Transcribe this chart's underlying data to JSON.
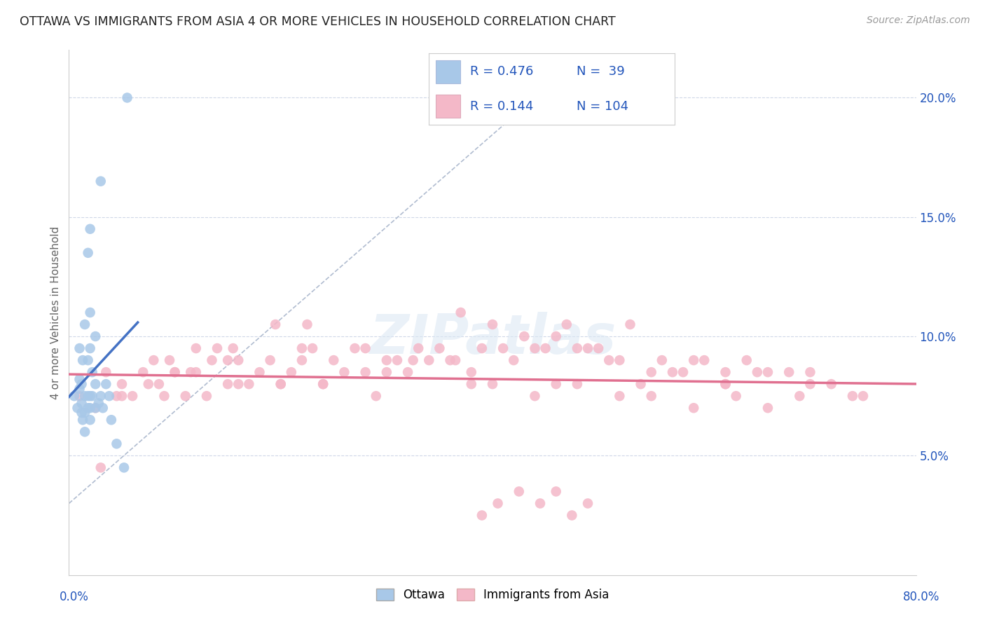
{
  "title": "OTTAWA VS IMMIGRANTS FROM ASIA 4 OR MORE VEHICLES IN HOUSEHOLD CORRELATION CHART",
  "source_text": "Source: ZipAtlas.com",
  "ylabel": "4 or more Vehicles in Household",
  "xlim": [
    0.0,
    80.0
  ],
  "ylim": [
    0.0,
    22.0
  ],
  "ytick_vals": [
    5.0,
    10.0,
    15.0,
    20.0
  ],
  "ytick_labels": [
    "5.0%",
    "10.0%",
    "15.0%",
    "20.0%"
  ],
  "watermark": "ZIPatlas",
  "color_ottawa": "#a8c8e8",
  "color_immigrants": "#f4b8c8",
  "color_trendline_ottawa": "#4472c4",
  "color_trendline_immigrants": "#e07090",
  "color_ref_line": "#b0bcd0",
  "color_grid": "#d0d8e8",
  "color_title": "#333333",
  "color_legend_val": "#2255bb",
  "color_yticklabel": "#2255bb",
  "ottawa_x": [
    0.5,
    0.8,
    1.0,
    1.0,
    1.0,
    1.2,
    1.2,
    1.2,
    1.3,
    1.3,
    1.5,
    1.5,
    1.5,
    1.5,
    1.8,
    1.8,
    1.8,
    1.8,
    2.0,
    2.0,
    2.0,
    2.0,
    2.0,
    2.0,
    2.2,
    2.2,
    2.5,
    2.5,
    2.5,
    2.8,
    3.0,
    3.0,
    3.2,
    3.5,
    3.8,
    4.0,
    4.5,
    5.2,
    5.5
  ],
  "ottawa_y": [
    7.5,
    7.0,
    7.8,
    8.2,
    9.5,
    6.8,
    7.2,
    8.0,
    6.5,
    9.0,
    6.0,
    6.8,
    7.5,
    10.5,
    7.0,
    7.5,
    9.0,
    13.5,
    6.5,
    7.0,
    7.5,
    9.5,
    11.0,
    14.5,
    7.5,
    8.5,
    7.0,
    8.0,
    10.0,
    7.2,
    7.5,
    16.5,
    7.0,
    8.0,
    7.5,
    6.5,
    5.5,
    4.5,
    20.0
  ],
  "immigrants_x": [
    1.0,
    2.5,
    3.0,
    4.5,
    5.0,
    6.0,
    7.0,
    8.0,
    8.5,
    9.0,
    9.5,
    10.0,
    11.0,
    11.5,
    12.0,
    13.0,
    13.5,
    14.0,
    15.0,
    15.5,
    16.0,
    17.0,
    18.0,
    19.0,
    19.5,
    20.0,
    21.0,
    22.0,
    22.5,
    23.0,
    24.0,
    25.0,
    26.0,
    27.0,
    28.0,
    29.0,
    30.0,
    31.0,
    32.0,
    33.0,
    34.0,
    35.0,
    36.0,
    37.0,
    38.0,
    39.0,
    40.0,
    41.0,
    42.0,
    43.0,
    44.0,
    45.0,
    46.0,
    47.0,
    48.0,
    49.0,
    50.0,
    51.0,
    52.0,
    53.0,
    55.0,
    56.0,
    57.0,
    58.0,
    59.0,
    60.0,
    62.0,
    63.0,
    64.0,
    65.0,
    66.0,
    68.0,
    70.0,
    72.0,
    74.0,
    75.0,
    3.5,
    7.5,
    12.0,
    16.0,
    20.0,
    24.0,
    28.0,
    32.5,
    36.5,
    40.0,
    44.0,
    48.0,
    52.0,
    55.0,
    59.0,
    62.0,
    66.0,
    69.0,
    5.0,
    10.0,
    15.0,
    22.0,
    30.0,
    38.0,
    46.0,
    54.0,
    62.0,
    70.0
  ],
  "immigrants_y": [
    7.5,
    7.0,
    4.5,
    7.5,
    8.0,
    7.5,
    8.5,
    9.0,
    8.0,
    7.5,
    9.0,
    8.5,
    7.5,
    8.5,
    9.5,
    7.5,
    9.0,
    9.5,
    8.0,
    9.5,
    9.0,
    8.0,
    8.5,
    9.0,
    10.5,
    8.0,
    8.5,
    9.5,
    10.5,
    9.5,
    8.0,
    9.0,
    8.5,
    9.5,
    8.5,
    7.5,
    9.0,
    9.0,
    8.5,
    9.5,
    9.0,
    9.5,
    9.0,
    11.0,
    8.5,
    9.5,
    10.5,
    9.5,
    9.0,
    10.0,
    9.5,
    9.5,
    10.0,
    10.5,
    9.5,
    9.5,
    9.5,
    9.0,
    9.0,
    10.5,
    8.5,
    9.0,
    8.5,
    8.5,
    9.0,
    9.0,
    8.5,
    7.5,
    9.0,
    8.5,
    8.5,
    8.5,
    8.5,
    8.0,
    7.5,
    7.5,
    8.5,
    8.0,
    8.5,
    8.0,
    8.0,
    8.0,
    9.5,
    9.0,
    9.0,
    8.0,
    7.5,
    8.0,
    7.5,
    7.5,
    7.0,
    8.0,
    7.0,
    7.5,
    7.5,
    8.5,
    9.0,
    9.0,
    8.5,
    8.0,
    8.0,
    8.0,
    8.0,
    8.0
  ],
  "immigrants_extra_x": [
    39.0,
    40.5,
    42.5,
    44.5,
    46.0,
    47.5,
    49.0
  ],
  "immigrants_extra_y": [
    2.5,
    3.0,
    3.5,
    3.0,
    3.5,
    2.5,
    3.0
  ]
}
